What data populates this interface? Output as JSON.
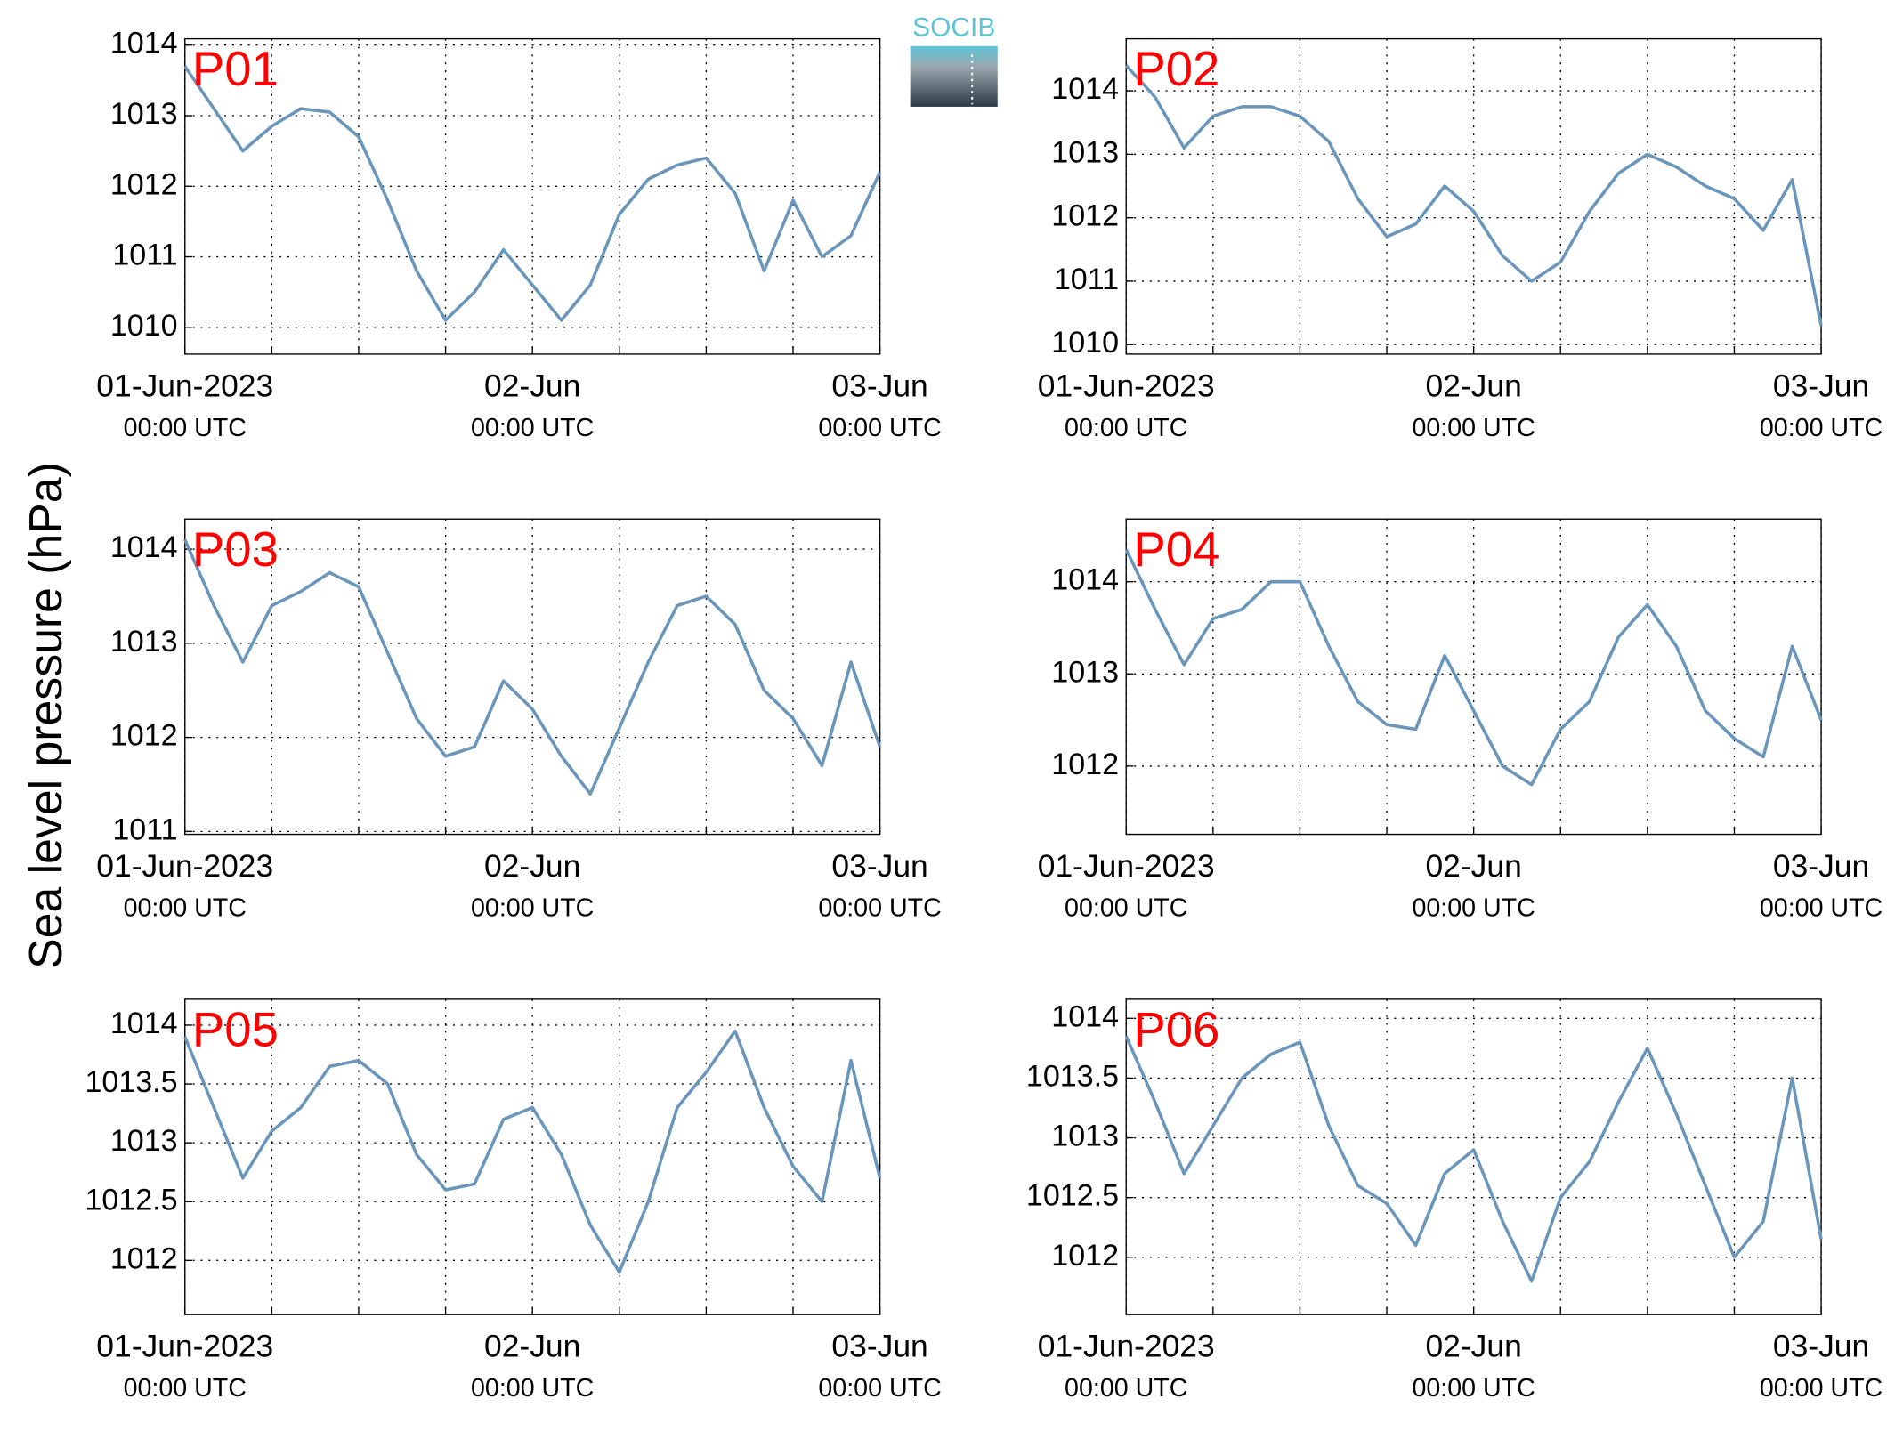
{
  "ylabel": "Sea level pressure (hPa)",
  "logo": "SOCIB",
  "chart_data": [
    {
      "type": "line",
      "title": "P01",
      "color": "#6b96bb",
      "xlim": [
        "2023-06-01T00:00",
        "2023-06-03T00:00"
      ],
      "ylim": [
        1009.62,
        1014.09
      ],
      "yticks": [
        1010,
        1011,
        1012,
        1013,
        1014
      ],
      "grid": true,
      "xticks": [
        {
          "value": "2023-06-01T00:00",
          "label": "01-Jun-2023",
          "sublabel": "00:00 UTC"
        },
        {
          "value": "2023-06-01T06:00",
          "label": null
        },
        {
          "value": "2023-06-01T12:00",
          "label": null
        },
        {
          "value": "2023-06-01T18:00",
          "label": null
        },
        {
          "value": "2023-06-02T00:00",
          "label": "02-Jun",
          "sublabel": "00:00 UTC"
        },
        {
          "value": "2023-06-02T06:00",
          "label": null
        },
        {
          "value": "2023-06-02T12:00",
          "label": null
        },
        {
          "value": "2023-06-02T18:00",
          "label": null
        },
        {
          "value": "2023-06-03T00:00",
          "label": "03-Jun",
          "sublabel": "00:00 UTC"
        }
      ],
      "x": [
        "2023-06-01T00:00",
        "2023-06-01T02:00",
        "2023-06-01T04:00",
        "2023-06-01T06:00",
        "2023-06-01T08:00",
        "2023-06-01T10:00",
        "2023-06-01T12:00",
        "2023-06-01T14:00",
        "2023-06-01T16:00",
        "2023-06-01T18:00",
        "2023-06-01T20:00",
        "2023-06-01T22:00",
        "2023-06-02T00:00",
        "2023-06-02T02:00",
        "2023-06-02T04:00",
        "2023-06-02T06:00",
        "2023-06-02T08:00",
        "2023-06-02T10:00",
        "2023-06-02T12:00",
        "2023-06-02T14:00",
        "2023-06-02T16:00",
        "2023-06-02T18:00",
        "2023-06-02T20:00",
        "2023-06-02T22:00",
        "2023-06-03T00:00"
      ],
      "values": [
        1013.7,
        1013.1,
        1012.5,
        1012.85,
        1013.1,
        1013.05,
        1012.7,
        1011.8,
        1010.8,
        1010.1,
        1010.5,
        1011.1,
        1010.6,
        1010.1,
        1010.6,
        1011.6,
        1012.1,
        1012.3,
        1012.4,
        1011.9,
        1010.8,
        1011.8,
        1011.0,
        1011.3,
        1012.2
      ]
    },
    {
      "type": "line",
      "title": "P02",
      "color": "#6b96bb",
      "xlim": [
        "2023-06-01T00:00",
        "2023-06-03T00:00"
      ],
      "ylim": [
        1009.85,
        1014.82
      ],
      "yticks": [
        1010,
        1011,
        1012,
        1013,
        1014
      ],
      "grid": true,
      "xticks": [
        {
          "value": "2023-06-01T00:00",
          "label": "01-Jun-2023",
          "sublabel": "00:00 UTC"
        },
        {
          "value": "2023-06-01T06:00",
          "label": null
        },
        {
          "value": "2023-06-01T12:00",
          "label": null
        },
        {
          "value": "2023-06-01T18:00",
          "label": null
        },
        {
          "value": "2023-06-02T00:00",
          "label": "02-Jun",
          "sublabel": "00:00 UTC"
        },
        {
          "value": "2023-06-02T06:00",
          "label": null
        },
        {
          "value": "2023-06-02T12:00",
          "label": null
        },
        {
          "value": "2023-06-02T18:00",
          "label": null
        },
        {
          "value": "2023-06-03T00:00",
          "label": "03-Jun",
          "sublabel": "00:00 UTC"
        }
      ],
      "x": [
        "2023-06-01T00:00",
        "2023-06-01T02:00",
        "2023-06-01T04:00",
        "2023-06-01T06:00",
        "2023-06-01T08:00",
        "2023-06-01T10:00",
        "2023-06-01T12:00",
        "2023-06-01T14:00",
        "2023-06-01T16:00",
        "2023-06-01T18:00",
        "2023-06-01T20:00",
        "2023-06-01T22:00",
        "2023-06-02T00:00",
        "2023-06-02T02:00",
        "2023-06-02T04:00",
        "2023-06-02T06:00",
        "2023-06-02T08:00",
        "2023-06-02T10:00",
        "2023-06-02T12:00",
        "2023-06-02T14:00",
        "2023-06-02T16:00",
        "2023-06-02T18:00",
        "2023-06-02T20:00",
        "2023-06-02T22:00",
        "2023-06-03T00:00"
      ],
      "values": [
        1014.4,
        1013.9,
        1013.1,
        1013.6,
        1013.75,
        1013.75,
        1013.6,
        1013.2,
        1012.3,
        1011.7,
        1011.9,
        1012.5,
        1012.1,
        1011.4,
        1011.0,
        1011.3,
        1012.1,
        1012.7,
        1013.0,
        1012.8,
        1012.5,
        1012.3,
        1011.8,
        1012.6,
        1010.3
      ]
    },
    {
      "type": "line",
      "title": "P03",
      "color": "#6b96bb",
      "xlim": [
        "2023-06-01T00:00",
        "2023-06-03T00:00"
      ],
      "ylim": [
        1010.97,
        1014.32
      ],
      "yticks": [
        1011,
        1012,
        1013,
        1014
      ],
      "grid": true,
      "xticks": [
        {
          "value": "2023-06-01T00:00",
          "label": "01-Jun-2023",
          "sublabel": "00:00 UTC"
        },
        {
          "value": "2023-06-01T06:00",
          "label": null
        },
        {
          "value": "2023-06-01T12:00",
          "label": null
        },
        {
          "value": "2023-06-01T18:00",
          "label": null
        },
        {
          "value": "2023-06-02T00:00",
          "label": "02-Jun",
          "sublabel": "00:00 UTC"
        },
        {
          "value": "2023-06-02T06:00",
          "label": null
        },
        {
          "value": "2023-06-02T12:00",
          "label": null
        },
        {
          "value": "2023-06-02T18:00",
          "label": null
        },
        {
          "value": "2023-06-03T00:00",
          "label": "03-Jun",
          "sublabel": "00:00 UTC"
        }
      ],
      "x": [
        "2023-06-01T00:00",
        "2023-06-01T02:00",
        "2023-06-01T04:00",
        "2023-06-01T06:00",
        "2023-06-01T08:00",
        "2023-06-01T10:00",
        "2023-06-01T12:00",
        "2023-06-01T14:00",
        "2023-06-01T16:00",
        "2023-06-01T18:00",
        "2023-06-01T20:00",
        "2023-06-01T22:00",
        "2023-06-02T00:00",
        "2023-06-02T02:00",
        "2023-06-02T04:00",
        "2023-06-02T06:00",
        "2023-06-02T08:00",
        "2023-06-02T10:00",
        "2023-06-02T12:00",
        "2023-06-02T14:00",
        "2023-06-02T16:00",
        "2023-06-02T18:00",
        "2023-06-02T20:00",
        "2023-06-02T22:00",
        "2023-06-03T00:00"
      ],
      "values": [
        1014.1,
        1013.4,
        1012.8,
        1013.4,
        1013.55,
        1013.75,
        1013.6,
        1012.9,
        1012.2,
        1011.8,
        1011.9,
        1012.6,
        1012.3,
        1011.8,
        1011.4,
        1012.1,
        1012.8,
        1013.4,
        1013.5,
        1013.2,
        1012.5,
        1012.2,
        1011.7,
        1012.8,
        1011.9
      ]
    },
    {
      "type": "line",
      "title": "P04",
      "color": "#6b96bb",
      "xlim": [
        "2023-06-01T00:00",
        "2023-06-03T00:00"
      ],
      "ylim": [
        1011.26,
        1014.68
      ],
      "yticks": [
        1012,
        1013,
        1014
      ],
      "grid": true,
      "xticks": [
        {
          "value": "2023-06-01T00:00",
          "label": "01-Jun-2023",
          "sublabel": "00:00 UTC"
        },
        {
          "value": "2023-06-01T06:00",
          "label": null
        },
        {
          "value": "2023-06-01T12:00",
          "label": null
        },
        {
          "value": "2023-06-01T18:00",
          "label": null
        },
        {
          "value": "2023-06-02T00:00",
          "label": "02-Jun",
          "sublabel": "00:00 UTC"
        },
        {
          "value": "2023-06-02T06:00",
          "label": null
        },
        {
          "value": "2023-06-02T12:00",
          "label": null
        },
        {
          "value": "2023-06-02T18:00",
          "label": null
        },
        {
          "value": "2023-06-03T00:00",
          "label": "03-Jun",
          "sublabel": "00:00 UTC"
        }
      ],
      "x": [
        "2023-06-01T00:00",
        "2023-06-01T02:00",
        "2023-06-01T04:00",
        "2023-06-01T06:00",
        "2023-06-01T08:00",
        "2023-06-01T10:00",
        "2023-06-01T12:00",
        "2023-06-01T14:00",
        "2023-06-01T16:00",
        "2023-06-01T18:00",
        "2023-06-01T20:00",
        "2023-06-01T22:00",
        "2023-06-02T00:00",
        "2023-06-02T02:00",
        "2023-06-02T04:00",
        "2023-06-02T06:00",
        "2023-06-02T08:00",
        "2023-06-02T10:00",
        "2023-06-02T12:00",
        "2023-06-02T14:00",
        "2023-06-02T16:00",
        "2023-06-02T18:00",
        "2023-06-02T20:00",
        "2023-06-02T22:00",
        "2023-06-03T00:00"
      ],
      "values": [
        1014.35,
        1013.7,
        1013.1,
        1013.6,
        1013.7,
        1014.0,
        1014.0,
        1013.3,
        1012.7,
        1012.45,
        1012.4,
        1013.2,
        1012.6,
        1012.0,
        1011.8,
        1012.4,
        1012.7,
        1013.4,
        1013.75,
        1013.3,
        1012.6,
        1012.3,
        1012.1,
        1013.3,
        1012.5
      ]
    },
    {
      "type": "line",
      "title": "P05",
      "color": "#6b96bb",
      "xlim": [
        "2023-06-01T00:00",
        "2023-06-03T00:00"
      ],
      "ylim": [
        1011.54,
        1014.22
      ],
      "yticks": [
        1012,
        1012.5,
        1013,
        1013.5,
        1014
      ],
      "grid": true,
      "xticks": [
        {
          "value": "2023-06-01T00:00",
          "label": "01-Jun-2023",
          "sublabel": "00:00 UTC"
        },
        {
          "value": "2023-06-01T06:00",
          "label": null
        },
        {
          "value": "2023-06-01T12:00",
          "label": null
        },
        {
          "value": "2023-06-01T18:00",
          "label": null
        },
        {
          "value": "2023-06-02T00:00",
          "label": "02-Jun",
          "sublabel": "00:00 UTC"
        },
        {
          "value": "2023-06-02T06:00",
          "label": null
        },
        {
          "value": "2023-06-02T12:00",
          "label": null
        },
        {
          "value": "2023-06-02T18:00",
          "label": null
        },
        {
          "value": "2023-06-03T00:00",
          "label": "03-Jun",
          "sublabel": "00:00 UTC"
        }
      ],
      "x": [
        "2023-06-01T00:00",
        "2023-06-01T02:00",
        "2023-06-01T04:00",
        "2023-06-01T06:00",
        "2023-06-01T08:00",
        "2023-06-01T10:00",
        "2023-06-01T12:00",
        "2023-06-01T14:00",
        "2023-06-01T16:00",
        "2023-06-01T18:00",
        "2023-06-01T20:00",
        "2023-06-01T22:00",
        "2023-06-02T00:00",
        "2023-06-02T02:00",
        "2023-06-02T04:00",
        "2023-06-02T06:00",
        "2023-06-02T08:00",
        "2023-06-02T10:00",
        "2023-06-02T12:00",
        "2023-06-02T14:00",
        "2023-06-02T16:00",
        "2023-06-02T18:00",
        "2023-06-02T20:00",
        "2023-06-02T22:00",
        "2023-06-03T00:00"
      ],
      "values": [
        1013.9,
        1013.3,
        1012.7,
        1013.1,
        1013.3,
        1013.65,
        1013.7,
        1013.5,
        1012.9,
        1012.6,
        1012.65,
        1013.2,
        1013.3,
        1012.9,
        1012.3,
        1011.9,
        1012.5,
        1013.3,
        1013.6,
        1013.95,
        1013.3,
        1012.8,
        1012.5,
        1013.7,
        1012.7
      ]
    },
    {
      "type": "line",
      "title": "P06",
      "color": "#6b96bb",
      "xlim": [
        "2023-06-01T00:00",
        "2023-06-03T00:00"
      ],
      "ylim": [
        1011.52,
        1014.16
      ],
      "yticks": [
        1012,
        1012.5,
        1013,
        1013.5,
        1014
      ],
      "grid": true,
      "xticks": [
        {
          "value": "2023-06-01T00:00",
          "label": "01-Jun-2023",
          "sublabel": "00:00 UTC"
        },
        {
          "value": "2023-06-01T06:00",
          "label": null
        },
        {
          "value": "2023-06-01T12:00",
          "label": null
        },
        {
          "value": "2023-06-01T18:00",
          "label": null
        },
        {
          "value": "2023-06-02T00:00",
          "label": "02-Jun",
          "sublabel": "00:00 UTC"
        },
        {
          "value": "2023-06-02T06:00",
          "label": null
        },
        {
          "value": "2023-06-02T12:00",
          "label": null
        },
        {
          "value": "2023-06-02T18:00",
          "label": null
        },
        {
          "value": "2023-06-03T00:00",
          "label": "03-Jun",
          "sublabel": "00:00 UTC"
        }
      ],
      "x": [
        "2023-06-01T00:00",
        "2023-06-01T02:00",
        "2023-06-01T04:00",
        "2023-06-01T06:00",
        "2023-06-01T08:00",
        "2023-06-01T10:00",
        "2023-06-01T12:00",
        "2023-06-01T14:00",
        "2023-06-01T16:00",
        "2023-06-01T18:00",
        "2023-06-01T20:00",
        "2023-06-01T22:00",
        "2023-06-02T00:00",
        "2023-06-02T02:00",
        "2023-06-02T04:00",
        "2023-06-02T06:00",
        "2023-06-02T08:00",
        "2023-06-02T10:00",
        "2023-06-02T12:00",
        "2023-06-02T14:00",
        "2023-06-02T16:00",
        "2023-06-02T18:00",
        "2023-06-02T20:00",
        "2023-06-02T22:00",
        "2023-06-03T00:00"
      ],
      "values": [
        1013.85,
        1013.3,
        1012.7,
        1013.1,
        1013.5,
        1013.7,
        1013.8,
        1013.1,
        1012.6,
        1012.45,
        1012.1,
        1012.7,
        1012.9,
        1012.3,
        1011.8,
        1012.5,
        1012.8,
        1013.3,
        1013.75,
        1013.2,
        1012.6,
        1012.0,
        1012.3,
        1013.5,
        1012.15
      ]
    }
  ]
}
